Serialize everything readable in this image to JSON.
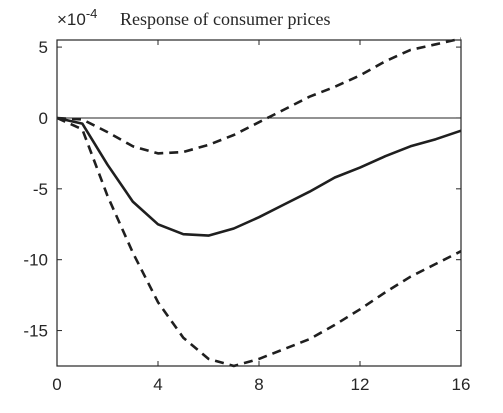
{
  "chart_data": {
    "type": "line",
    "title": "Response of consumer prices",
    "y_exponent_label": "×10",
    "y_exponent_power": "-4",
    "xlim": [
      0,
      16
    ],
    "ylim": [
      -17.5,
      5.5
    ],
    "x_ticks": [
      0,
      4,
      8,
      12,
      16
    ],
    "y_ticks": [
      5,
      0,
      -5,
      -10,
      -15
    ],
    "grid": false,
    "legend": "none",
    "zero_line": true,
    "colors": {
      "line": "#1f1f1f",
      "axis": "#262626",
      "background": "#ffffff"
    },
    "series": [
      {
        "style": "solid",
        "x": [
          0,
          1,
          2,
          3,
          4,
          5,
          6,
          7,
          8,
          9,
          10,
          11,
          12,
          13,
          14,
          15,
          16
        ],
        "values": [
          0,
          -0.4,
          -3.3,
          -5.9,
          -7.5,
          -8.2,
          -8.3,
          -7.8,
          -7.0,
          -6.1,
          -5.2,
          -4.2,
          -3.5,
          -2.7,
          -2.0,
          -1.5,
          -0.9
        ]
      },
      {
        "style": "dashed",
        "x": [
          0,
          1,
          2,
          3,
          4,
          5,
          6,
          7,
          8,
          9,
          10,
          11,
          12,
          13,
          14,
          15,
          16
        ],
        "values": [
          0,
          -0.1,
          -1.0,
          -2.0,
          -2.5,
          -2.4,
          -1.9,
          -1.2,
          -0.3,
          0.6,
          1.5,
          2.2,
          3.0,
          4.0,
          4.8,
          5.2,
          5.6
        ]
      },
      {
        "style": "dashed",
        "x": [
          0,
          1,
          2,
          3,
          4,
          5,
          6,
          7,
          8,
          9,
          10,
          11,
          12,
          13,
          14,
          15,
          16
        ],
        "values": [
          0,
          -0.8,
          -5.5,
          -9.5,
          -13.0,
          -15.5,
          -17.0,
          -17.5,
          -17.0,
          -16.3,
          -15.6,
          -14.6,
          -13.5,
          -12.3,
          -11.2,
          -10.3,
          -9.4
        ]
      }
    ]
  }
}
